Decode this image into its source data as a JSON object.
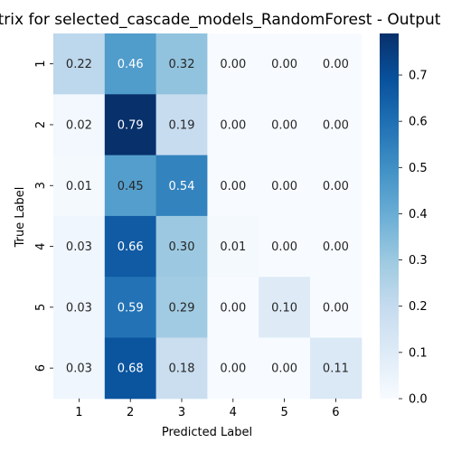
{
  "chart_data": {
    "type": "heatmap",
    "title": "Matrix for selected_cascade_models_RandomForest - Output",
    "xlabel": "Predicted Label",
    "ylabel": "True Label",
    "x_categories": [
      "1",
      "2",
      "3",
      "4",
      "5",
      "6"
    ],
    "y_categories": [
      "1",
      "2",
      "3",
      "4",
      "5",
      "6"
    ],
    "values": [
      [
        0.22,
        0.46,
        0.32,
        0.0,
        0.0,
        0.0
      ],
      [
        0.02,
        0.79,
        0.19,
        0.0,
        0.0,
        0.0
      ],
      [
        0.01,
        0.45,
        0.54,
        0.0,
        0.0,
        0.0
      ],
      [
        0.03,
        0.66,
        0.3,
        0.01,
        0.0,
        0.0
      ],
      [
        0.03,
        0.59,
        0.29,
        0.0,
        0.1,
        0.0
      ],
      [
        0.03,
        0.68,
        0.18,
        0.0,
        0.0,
        0.11
      ]
    ],
    "colormap": "Blues",
    "colorbar": {
      "range": [
        0,
        0.79
      ],
      "ticks": [
        0.0,
        0.1,
        0.2,
        0.3,
        0.4,
        0.5,
        0.6,
        0.7
      ],
      "tick_labels": [
        "0.0",
        "0.1",
        "0.2",
        "0.3",
        "0.4",
        "0.5",
        "0.6",
        "0.7"
      ]
    },
    "grid": false
  }
}
